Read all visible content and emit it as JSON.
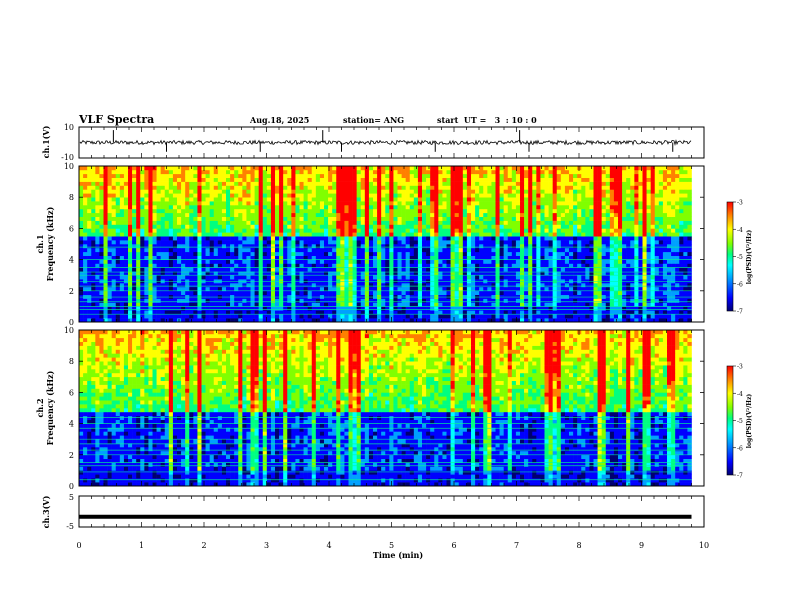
{
  "header": {
    "title": "VLF Spectra",
    "date": "Aug.18, 2025",
    "station": "station= ANG",
    "start": "start  UT =   3  : 10 : 0"
  },
  "chart_data": [
    {
      "type": "line",
      "id": "ch1-waveform",
      "ylabel": "ch.1(V)",
      "ylim": [
        -10,
        10
      ],
      "yticklabels": [
        "10",
        "-10"
      ],
      "baseline": 0,
      "spike_times_min": [
        0.55,
        1.4,
        2.9,
        3.9,
        4.2,
        5.7,
        7.05,
        7.2,
        9.5
      ],
      "xlim": [
        0,
        10
      ]
    },
    {
      "type": "heatmap",
      "id": "ch1-spectrogram",
      "ylabel_line1": "ch.1",
      "ylabel_line2": "Frequency (kHz)",
      "ylim": [
        0,
        10
      ],
      "yticklabels": [
        "0",
        "2",
        "4",
        "6",
        "8",
        "10"
      ],
      "xlim": [
        0,
        9.8
      ],
      "colorbar": {
        "label": "log(PSD)(V²/Hz)",
        "range": [
          -7,
          -3
        ],
        "ticklabels": [
          "-3",
          "-4",
          "-5",
          "-6",
          "-7"
        ]
      },
      "horizontal_lines_khz": [
        0.5,
        0.8,
        1.0,
        1.3,
        1.6,
        2.0,
        2.3,
        2.6,
        3.0,
        3.2,
        3.5,
        4.0,
        4.8
      ],
      "noise_floor_khz": 5.5
    },
    {
      "type": "heatmap",
      "id": "ch2-spectrogram",
      "ylabel_line1": "ch.2",
      "ylabel_line2": "Frequency (kHz)",
      "ylim": [
        0,
        10
      ],
      "yticklabels": [
        "0",
        "2",
        "4",
        "6",
        "8",
        "10"
      ],
      "xlim": [
        0,
        9.8
      ],
      "colorbar": {
        "label": "log(PSD)(V²/Hz)",
        "range": [
          -7,
          -3
        ],
        "ticklabels": [
          "-3",
          "-4",
          "-5",
          "-6",
          "-7"
        ]
      },
      "horizontal_lines_khz": [
        0.4,
        0.9,
        1.3,
        1.5,
        2.0,
        2.3,
        2.7,
        3.0,
        3.7,
        4.0,
        4.4
      ],
      "noise_floor_khz": 4.8
    },
    {
      "type": "line",
      "id": "ch3-waveform",
      "ylabel": "ch.3(V)",
      "ylim": [
        -5,
        5
      ],
      "yticklabels": [
        "5",
        "-5"
      ],
      "level": -1.7,
      "xlim": [
        0,
        10
      ]
    }
  ],
  "xaxis": {
    "label": "Time (min)",
    "ticklabels": [
      "0",
      "1",
      "2",
      "3",
      "4",
      "5",
      "6",
      "7",
      "8",
      "9",
      "10"
    ]
  },
  "colors": {
    "colormap": [
      "#000070",
      "#0000ff",
      "#00a0ff",
      "#00ffff",
      "#00ff80",
      "#80ff00",
      "#ffff00",
      "#ff8000",
      "#ff0000"
    ]
  }
}
